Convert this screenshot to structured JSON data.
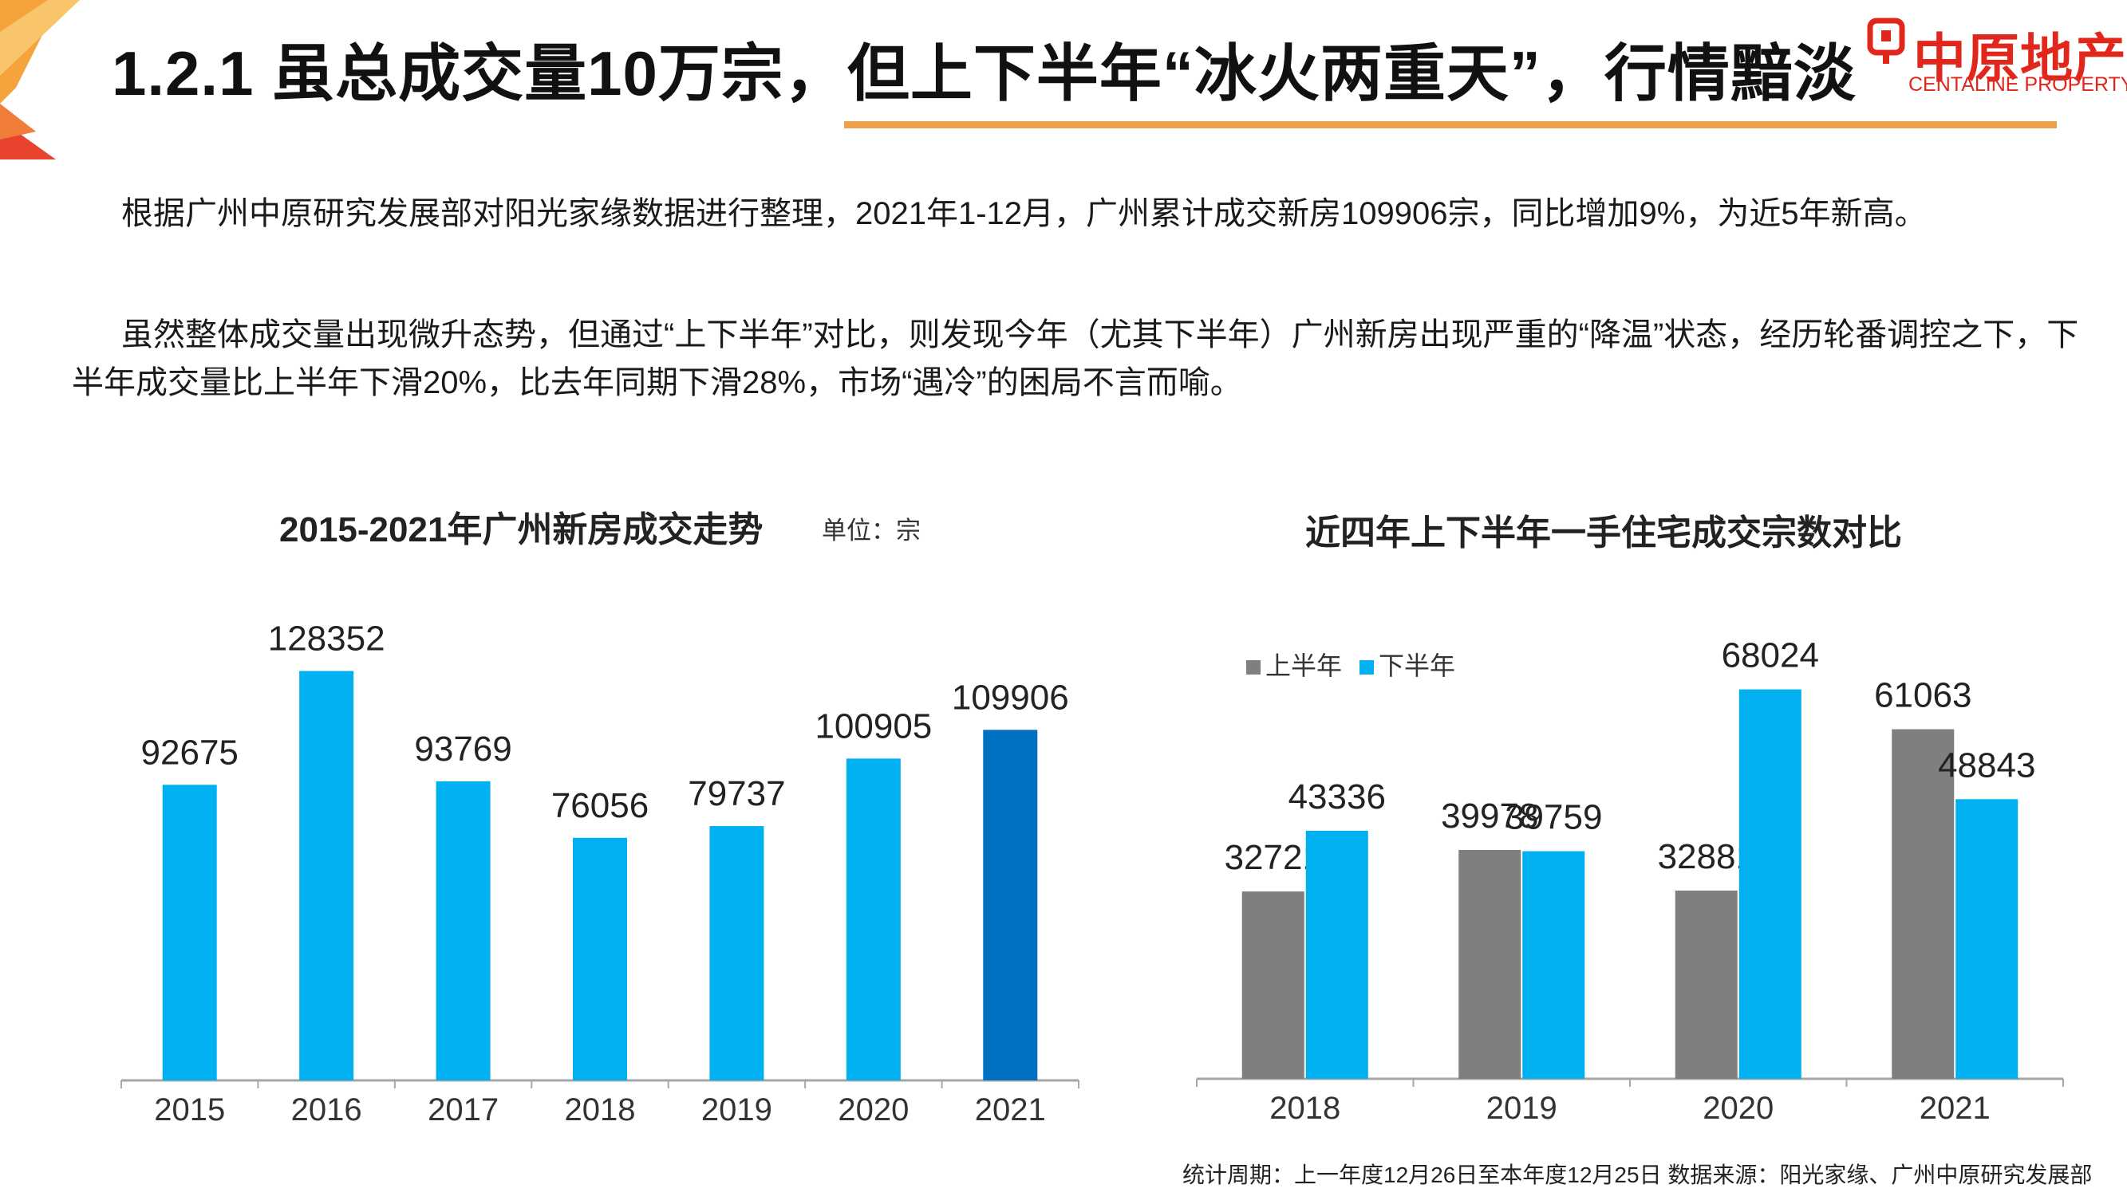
{
  "header": {
    "title": "1.2.1 虽总成交量10万宗，但上下半年“冰火两重天”，行情黯淡",
    "logo_cn": "中原地产",
    "logo_en": "CENTALINE PROPERTY"
  },
  "body": {
    "para1": "根据广州中原研究发展部对阳光家缘数据进行整理，2021年1-12月，广州累计成交新房109906宗，同比增加9%，为近5年新高。",
    "para2": "虽然整体成交量出现微升态势，但通过“上下半年”对比，则发现今年（尤其下半年）广州新房出现严重的“降温”状态，经历轮番调控之下，下半年成交量比上半年下滑20%，比去年同期下滑28%，市场“遇冷”的困局不言而喻。"
  },
  "footnote": "统计周期：上一年度12月26日至本年度12月25日 数据来源：阳光家缘、广州中原研究发展部",
  "colors": {
    "bar_blue": "#00b0f0",
    "bar_dark_blue": "#0070c0",
    "bar_gray": "#7f7f7f",
    "title_rule": "#f0a04b",
    "logo_red": "#e1261c"
  },
  "chart_data": [
    {
      "type": "bar",
      "title": "2015-2021年广州新房成交走势",
      "unit": "单位：宗",
      "categories": [
        "2015",
        "2016",
        "2017",
        "2018",
        "2019",
        "2020",
        "2021"
      ],
      "values": [
        92675,
        128352,
        93769,
        76056,
        79737,
        100905,
        109906
      ],
      "highlight_index": 6,
      "value_labels": [
        "92675",
        "128352",
        "93769",
        "76056",
        "79737",
        "100905",
        "109906"
      ],
      "ylim": [
        0,
        140000
      ],
      "grid": false
    },
    {
      "type": "bar",
      "title": "近四年上下半年一手住宅成交宗数对比",
      "categories": [
        "2018",
        "2019",
        "2020",
        "2021"
      ],
      "legend_position": "top-left",
      "series": [
        {
          "name": "上半年",
          "values": [
            32721,
            39978,
            32881,
            61063
          ],
          "labels": [
            "32721",
            "39978",
            "32881",
            "61063"
          ]
        },
        {
          "name": "下半年",
          "values": [
            43336,
            39759,
            68024,
            48843
          ],
          "labels": [
            "43336",
            "39759",
            "68024",
            "48843"
          ]
        }
      ],
      "ylim": [
        0,
        78000
      ],
      "grid": false
    }
  ]
}
